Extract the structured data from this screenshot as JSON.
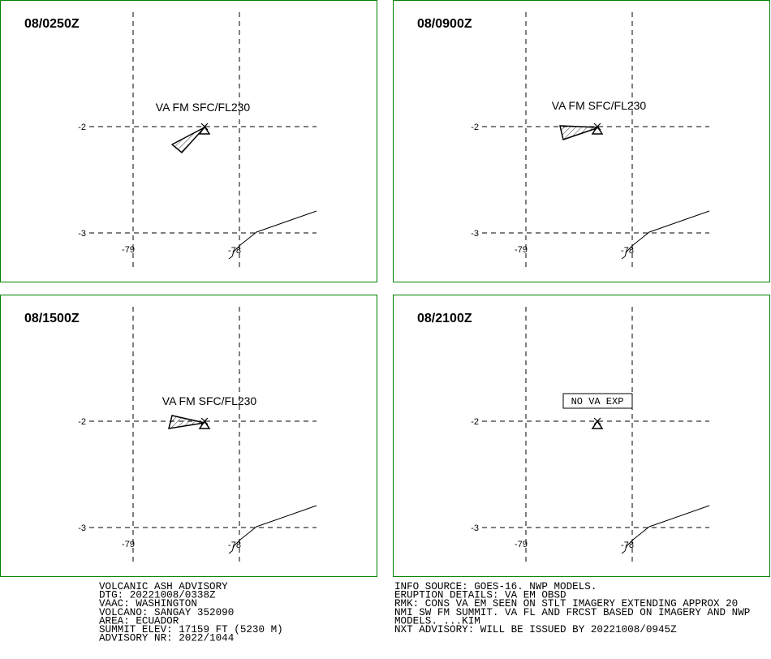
{
  "panels": [
    {
      "time": "08/0250Z",
      "label": "VA FM SFC/FL230"
    },
    {
      "time": "08/0900Z",
      "label": "VA FM SFC/FL230"
    },
    {
      "time": "08/1500Z",
      "label": "VA FM SFC/FL230"
    },
    {
      "time": "08/2100Z",
      "label": "NO VA EXP"
    }
  ],
  "grid_labels": {
    "lat": [
      "-2",
      "-3"
    ],
    "lon": [
      "-79",
      "-78"
    ]
  },
  "footer": {
    "left": [
      "VOLCANIC ASH ADVISORY",
      "DTG: 20221008/0338Z",
      "VAAC: WASHINGTON",
      "VOLCANO: SANGAY 352090",
      "AREA: ECUADOR",
      "SUMMIT ELEV: 17159 FT (5230 M)",
      "ADVISORY NR: 2022/1044"
    ],
    "right": [
      "INFO SOURCE: GOES-16. NWP MODELS.",
      "ERUPTION DETAILS: VA EM OBSD",
      "RMK: CONS VA EM SEEN ON STLT IMAGERY EXTENDING APPROX 20",
      "NMI SW FM SUMMIT. VA FL AND FRCST BASED ON IMAGERY AND NWP",
      "MODELS. ...KIM",
      "NXT ADVISORY: WILL BE ISSUED BY 20221008/0945Z"
    ]
  }
}
